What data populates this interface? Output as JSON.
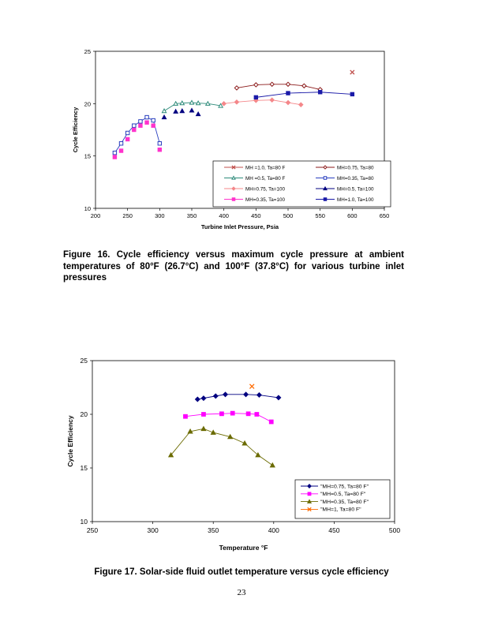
{
  "figure16": {
    "caption": "Figure 16.    Cycle efficiency versus maximum cycle pressure at ambient temperatures of 80°F (26.7°C) and 100°F (37.8°C) for various turbine inlet pressures"
  },
  "figure17": {
    "caption": "Figure 17.  Solar-side fluid outlet temperature versus cycle efficiency"
  },
  "page_number": "23",
  "chart_data": [
    {
      "type": "line",
      "xlabel": "Turbine Inlet Pressure, Psia",
      "ylabel": "Cycle Efficiency",
      "xlim": [
        200,
        650
      ],
      "ylim": [
        10,
        25
      ],
      "xticks": [
        "200",
        "250",
        "300",
        "350",
        "400",
        "450",
        "500",
        "550",
        "600",
        "650"
      ],
      "yticks": [
        "10",
        "15",
        "20",
        "25"
      ],
      "grid": false,
      "legend_position": "bottom-right",
      "series": [
        {
          "name": "MH =1.0, Ta=80 F",
          "color": "#c0504d",
          "marker": "x",
          "line": true,
          "x": [
            600
          ],
          "y": [
            23.0
          ]
        },
        {
          "name": "MH=0.75, Ta=80",
          "color": "#8b1a1a",
          "marker": "diamond-open",
          "line": true,
          "x": [
            420,
            450,
            475,
            500,
            525,
            550
          ],
          "y": [
            21.5,
            21.8,
            21.85,
            21.85,
            21.7,
            21.35
          ]
        },
        {
          "name": "MH =0.5, Ta=80 F",
          "color": "#2e8b7a",
          "marker": "triangle-open",
          "line": true,
          "x": [
            307,
            325,
            335,
            350,
            360,
            375,
            395
          ],
          "y": [
            19.3,
            20.0,
            20.05,
            20.1,
            20.05,
            20.0,
            19.8
          ]
        },
        {
          "name": "MH=0.35, Ta=80",
          "color": "#2a3fbf",
          "marker": "square-open",
          "line": true,
          "x": [
            230,
            240,
            250,
            260,
            270,
            280,
            290,
            300
          ],
          "y": [
            15.3,
            16.2,
            17.2,
            17.9,
            18.3,
            18.7,
            18.4,
            16.2
          ]
        },
        {
          "name": "MH=0.75, Ta=100",
          "color": "#f4878a",
          "marker": "diamond",
          "line": true,
          "x": [
            400,
            420,
            450,
            475,
            500,
            520
          ],
          "y": [
            20.0,
            20.15,
            20.3,
            20.35,
            20.1,
            19.9
          ]
        },
        {
          "name": "MH=0.5, Ta=100",
          "color": "#000080",
          "marker": "triangle",
          "line": false,
          "x": [
            307,
            325,
            335,
            350,
            360
          ],
          "y": [
            18.7,
            19.25,
            19.3,
            19.35,
            19.0
          ]
        },
        {
          "name": "MH=0.35, Ta=100",
          "color": "#ff33cc",
          "marker": "square",
          "line": false,
          "x": [
            230,
            240,
            250,
            260,
            270,
            280,
            290,
            300
          ],
          "y": [
            14.9,
            15.5,
            16.6,
            17.5,
            17.9,
            18.2,
            17.9,
            15.6
          ]
        },
        {
          "name": "MH=1.0, Ta=100",
          "color": "#1a1aa8",
          "marker": "square",
          "line": true,
          "x": [
            450,
            500,
            550,
            600
          ],
          "y": [
            20.6,
            21.0,
            21.1,
            20.9
          ]
        }
      ]
    },
    {
      "type": "line",
      "xlabel": "Temperature °F",
      "ylabel": "Cycle Efficiency",
      "xlim": [
        250,
        500
      ],
      "ylim": [
        10,
        25
      ],
      "xticks": [
        "250",
        "300",
        "350",
        "400",
        "450",
        "500"
      ],
      "yticks": [
        "10",
        "15",
        "20",
        "25"
      ],
      "grid": false,
      "legend_position": "bottom-right",
      "series": [
        {
          "name": "\"MH=0.75, Ta=80 F\"",
          "color": "#000080",
          "marker": "diamond",
          "line": true,
          "x": [
            337,
            342,
            352,
            360,
            377,
            388,
            404
          ],
          "y": [
            21.4,
            21.5,
            21.7,
            21.85,
            21.85,
            21.8,
            21.55
          ]
        },
        {
          "name": "\"MH=0.5, Ta=80 F\"",
          "color": "#ff00ff",
          "marker": "square",
          "line": true,
          "x": [
            327,
            342,
            357,
            366,
            379,
            386,
            398
          ],
          "y": [
            19.8,
            20.0,
            20.05,
            20.1,
            20.05,
            20.0,
            19.3
          ]
        },
        {
          "name": "\"MH=0.35, Ta=80 F\"",
          "color": "#6b6b00",
          "marker": "triangle",
          "line": true,
          "x": [
            315,
            331,
            342,
            350,
            364,
            376,
            387,
            399
          ],
          "y": [
            16.2,
            18.4,
            18.65,
            18.3,
            17.9,
            17.3,
            16.2,
            15.25
          ]
        },
        {
          "name": "\"MH=1, Ta=80 F\"",
          "color": "#ff6a00",
          "marker": "x",
          "line": true,
          "x": [
            382
          ],
          "y": [
            22.6
          ]
        }
      ]
    }
  ]
}
